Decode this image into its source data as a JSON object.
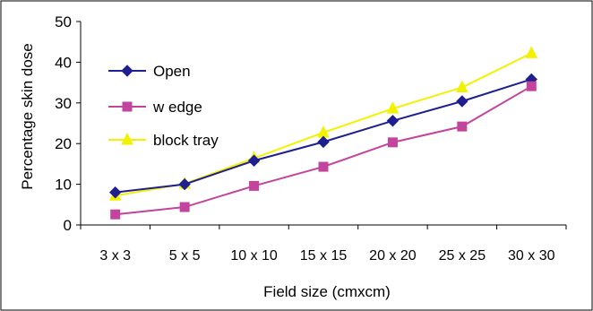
{
  "chart_data": {
    "type": "line",
    "title": "",
    "xlabel": "Field size (cmxcm)",
    "ylabel": "Percentage skin dose",
    "categories": [
      "3 x 3",
      "5 x 5",
      "10 x 10",
      "15 x 15",
      "20 x 20",
      "25 x 25",
      "30 x 30"
    ],
    "ylim": [
      0,
      50
    ],
    "yticks": [
      0,
      10,
      20,
      30,
      40,
      50
    ],
    "grid": false,
    "legend_position": "left",
    "series": [
      {
        "name": "Open",
        "marker": "diamond",
        "color": "#1f1f8f",
        "values": [
          8,
          10,
          15.8,
          20.4,
          25.6,
          30.4,
          35.8
        ]
      },
      {
        "name": "w edge",
        "marker": "square",
        "color": "#c2449c",
        "values": [
          2.6,
          4.4,
          9.6,
          14.3,
          20.3,
          24.2,
          34.1
        ]
      },
      {
        "name": "block tray",
        "marker": "triangle",
        "color": "#f2f200",
        "values": [
          7.2,
          10.1,
          16.4,
          22.7,
          28.6,
          33.8,
          42.2
        ]
      }
    ]
  }
}
